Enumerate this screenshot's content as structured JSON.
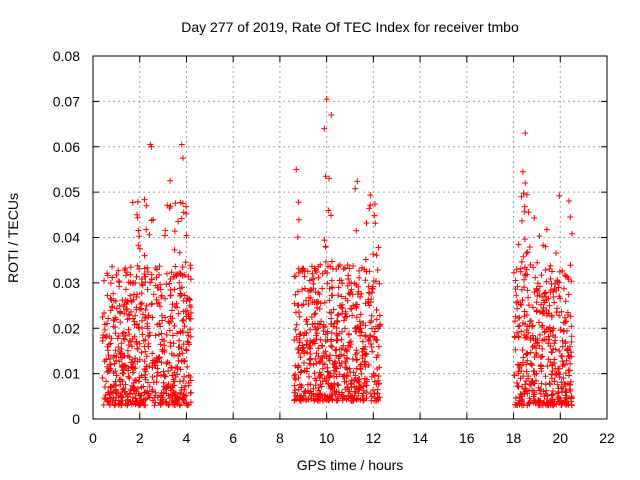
{
  "chart_data": {
    "type": "scatter",
    "title": "Day 277 of 2019, Rate Of TEC Index for receiver tmbo",
    "xlabel": "GPS time / hours",
    "ylabel": "ROTI / TECUs",
    "xlim": [
      0,
      22
    ],
    "ylim": [
      0,
      0.08
    ],
    "xticks": [
      0,
      2,
      4,
      6,
      8,
      10,
      12,
      14,
      16,
      18,
      20,
      22
    ],
    "xtick_labels": [
      "0",
      "2",
      "4",
      "6",
      "8",
      "10",
      "12",
      "14",
      "16",
      "18",
      "20",
      "22"
    ],
    "yticks": [
      0,
      0.01,
      0.02,
      0.03,
      0.04,
      0.05,
      0.06,
      0.07,
      0.08
    ],
    "ytick_labels": [
      "0",
      "0.01",
      "0.02",
      "0.03",
      "0.04",
      "0.05",
      "0.06",
      "0.07",
      "0.08"
    ],
    "grid": true,
    "marker": "+",
    "color": "#ff0000",
    "series": [
      {
        "name": "tmbo",
        "clusters": [
          {
            "x_range": [
              0.4,
              4.2
            ],
            "y_range": [
              0.003,
              0.034
            ],
            "y_peak_range": [
              0.034,
              0.061
            ],
            "peak_x": [
              2.3,
              2.5,
              3.2,
              3.8,
              3.9,
              1.8,
              1.9,
              2.0,
              3.6
            ]
          },
          {
            "x_range": [
              8.6,
              12.3
            ],
            "y_range": [
              0.004,
              0.034
            ],
            "y_peak_range": [
              0.034,
              0.0705
            ],
            "peak_x": [
              8.7,
              9.9,
              10.0,
              10.1,
              10.2,
              11.3,
              11.8,
              12.1
            ]
          },
          {
            "x_range": [
              18.0,
              20.5
            ],
            "y_range": [
              0.003,
              0.034
            ],
            "y_peak_range": [
              0.034,
              0.063
            ],
            "peak_x": [
              18.3,
              18.4,
              18.5,
              18.6,
              19.0,
              19.3,
              19.9,
              20.4
            ]
          }
        ],
        "highlights": [
          {
            "x": 10.0,
            "y": 0.0705
          },
          {
            "x": 10.2,
            "y": 0.067
          },
          {
            "x": 9.9,
            "y": 0.064
          },
          {
            "x": 18.5,
            "y": 0.063
          },
          {
            "x": 2.45,
            "y": 0.0605
          },
          {
            "x": 2.5,
            "y": 0.06
          },
          {
            "x": 3.8,
            "y": 0.0605
          },
          {
            "x": 3.85,
            "y": 0.0575
          },
          {
            "x": 3.3,
            "y": 0.0525
          },
          {
            "x": 8.7,
            "y": 0.055
          },
          {
            "x": 18.4,
            "y": 0.0545
          },
          {
            "x": 18.5,
            "y": 0.052
          }
        ]
      }
    ]
  }
}
